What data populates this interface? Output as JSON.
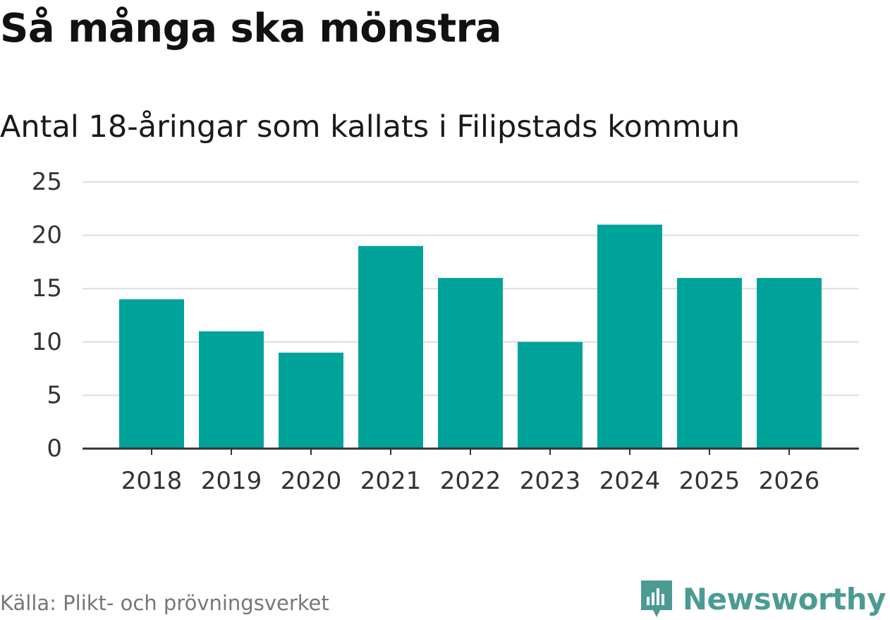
{
  "chart_data": {
    "type": "bar",
    "title": "Så många ska mönstra",
    "subtitle": "Antal 18-åringar som kallats i Filipstads kommun",
    "categories": [
      "2018",
      "2019",
      "2020",
      "2021",
      "2022",
      "2023",
      "2024",
      "2025",
      "2026"
    ],
    "values": [
      14,
      11,
      9,
      19,
      16,
      10,
      21,
      16,
      16
    ],
    "ylim": [
      0,
      25
    ],
    "yticks": [
      0,
      5,
      10,
      15,
      20,
      25
    ],
    "xlabel": "",
    "ylabel": "",
    "grid": true,
    "bar_color": "#00a39a"
  },
  "footer": {
    "source": "Källa: Plikt- och prövningsverket",
    "brand": "Newsworthy",
    "brand_icon": "newsworthy-logo-icon",
    "brand_color": "#4b9b93"
  }
}
